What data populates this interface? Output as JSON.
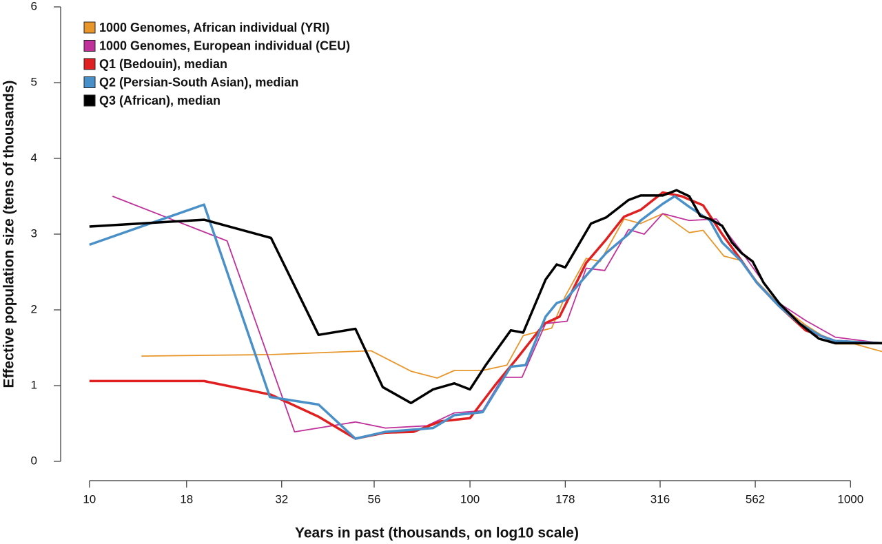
{
  "chart_data": {
    "type": "line",
    "x_label": "Years in past (thousands, on log10 scale)",
    "y_label": "Effective population size (tens of thousands)",
    "xscale": "log",
    "xlim": [
      8.4,
      1210
    ],
    "ylim": [
      0,
      6
    ],
    "xticks": [
      10,
      18,
      32,
      56,
      100,
      178,
      316,
      562,
      1000
    ],
    "yticks": [
      0,
      1,
      2,
      3,
      4,
      5,
      6
    ],
    "legend": "upper left",
    "series": [
      {
        "name": "1000 Genomes, African individual (YRI)",
        "color": "#e8962a",
        "x": [
          13.7,
          30.2,
          55,
          70,
          82,
          91,
          108,
          125,
          138,
          164,
          178,
          202,
          220,
          254,
          281,
          321,
          377,
          410,
          465,
          517,
          567,
          649,
          762,
          912,
          1025,
          1210
        ],
        "values": [
          1.39,
          1.41,
          1.46,
          1.19,
          1.1,
          1.2,
          1.2,
          1.27,
          1.66,
          1.76,
          2.18,
          2.68,
          2.64,
          3.2,
          3.14,
          3.27,
          3.02,
          3.05,
          2.71,
          2.65,
          2.38,
          2.07,
          1.8,
          1.55,
          1.55,
          1.45
        ]
      },
      {
        "name": "1000 Genomes, European individual (CEU)",
        "color": "#c0309a",
        "x": [
          11.5,
          23,
          34.6,
          50,
          60,
          77,
          91,
          108,
          122,
          137,
          158,
          180,
          202,
          226,
          261,
          287,
          321,
          377,
          444,
          517,
          591,
          649,
          762,
          912,
          1210
        ],
        "values": [
          3.5,
          2.91,
          0.39,
          0.52,
          0.44,
          0.47,
          0.64,
          0.67,
          1.11,
          1.11,
          1.82,
          1.85,
          2.55,
          2.52,
          3.06,
          3.0,
          3.27,
          3.18,
          3.2,
          2.77,
          2.36,
          2.09,
          1.86,
          1.64,
          1.56
        ]
      },
      {
        "name": "Q1 (Bedouin), median",
        "color": "#e02020",
        "x": [
          10,
          20,
          30,
          40,
          50,
          60,
          71,
          84,
          100,
          117,
          133,
          157,
          172,
          202,
          228,
          254,
          281,
          321,
          360,
          410,
          460,
          517,
          567,
          649,
          762,
          912,
          1210
        ],
        "values": [
          1.06,
          1.06,
          0.88,
          0.59,
          0.3,
          0.38,
          0.39,
          0.53,
          0.57,
          1.02,
          1.36,
          1.82,
          1.91,
          2.62,
          2.93,
          3.23,
          3.32,
          3.55,
          3.5,
          3.38,
          3.0,
          2.65,
          2.36,
          2.05,
          1.73,
          1.59,
          1.56
        ]
      },
      {
        "name": "Q2 (Persian-South Asian), median",
        "color": "#4a90c8",
        "x": [
          10,
          20,
          29.8,
          40,
          50,
          60,
          80,
          91,
          108,
          128,
          140,
          158,
          169,
          178,
          210,
          228,
          261,
          281,
          321,
          345,
          377,
          427,
          460,
          517,
          567,
          649,
          735,
          840,
          912,
          1210
        ],
        "values": [
          2.86,
          3.39,
          0.85,
          0.75,
          0.3,
          0.39,
          0.44,
          0.61,
          0.65,
          1.25,
          1.27,
          1.91,
          2.09,
          2.13,
          2.55,
          2.75,
          3.0,
          3.18,
          3.4,
          3.5,
          3.36,
          3.18,
          2.89,
          2.64,
          2.36,
          2.05,
          1.82,
          1.65,
          1.59,
          1.56
        ]
      },
      {
        "name": "Q3 (African), median",
        "color": "#000000",
        "x": [
          10,
          20,
          30,
          40,
          50,
          59,
          70,
          80,
          91,
          100,
          110,
          128,
          138,
          158,
          169,
          178,
          208,
          228,
          261,
          281,
          321,
          349,
          377,
          403,
          427,
          460,
          488,
          517,
          553,
          591,
          649,
          735,
          826,
          912,
          1025,
          1210
        ],
        "values": [
          3.1,
          3.19,
          2.95,
          1.67,
          1.75,
          0.98,
          0.77,
          0.95,
          1.03,
          0.95,
          1.27,
          1.73,
          1.7,
          2.4,
          2.6,
          2.56,
          3.14,
          3.22,
          3.45,
          3.51,
          3.51,
          3.58,
          3.5,
          3.24,
          3.2,
          3.11,
          2.89,
          2.75,
          2.64,
          2.36,
          2.09,
          1.82,
          1.62,
          1.56,
          1.56,
          1.56
        ]
      }
    ]
  }
}
